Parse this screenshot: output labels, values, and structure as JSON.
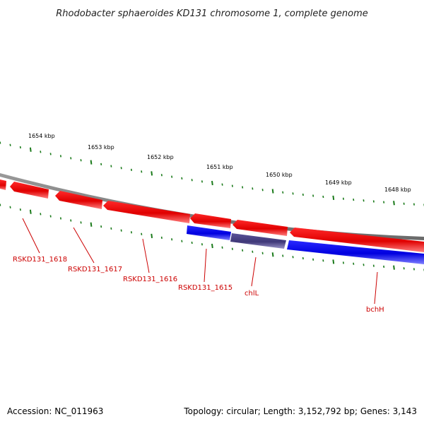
{
  "title": "Rhodobacter sphaeroides KD131 chromosome 1, complete genome",
  "footer": {
    "accession": "Accession: NC_011963",
    "summary": "Topology: circular; Length: 3,152,792 bp; Genes: 3,143"
  },
  "colors": {
    "forward_gene": "#ff0000",
    "reverse_gene": "#0000ff",
    "highlight_gene": "#4a4385",
    "backbone": "#808080",
    "tick": "#1a7a1a",
    "label": "#cc0000"
  },
  "scale_labels": [
    "1654 kbp",
    "1653 kbp",
    "1652 kbp",
    "1651 kbp",
    "1650 kbp",
    "1649 kbp",
    "1648 kbp"
  ],
  "gene_labels": [
    "RSKD131_1618",
    "RSKD131_1617",
    "RSKD131_1616",
    "RSKD131_1615",
    "chlL",
    "bchH"
  ]
}
